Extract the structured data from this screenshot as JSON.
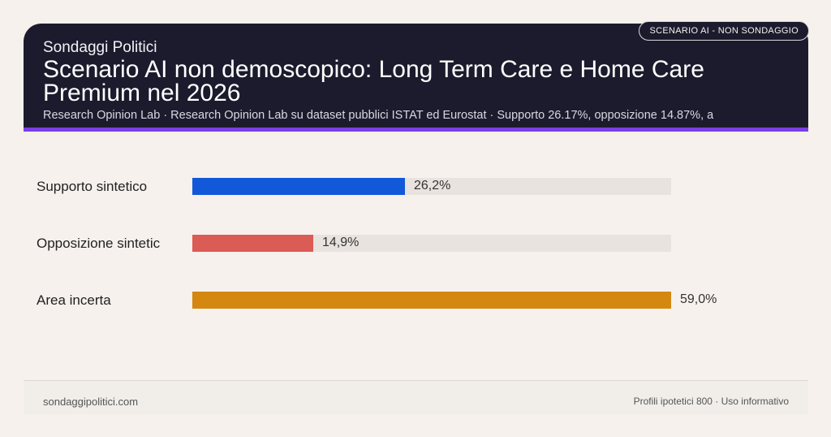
{
  "header": {
    "kicker": "Sondaggi Politici",
    "title": "Scenario AI non demoscopico: Long Term Care e Home Care Premium nel 2026",
    "subtitle": "Research Opinion Lab · Research Opinion Lab su dataset pubblici ISTAT ed Eurostat · Supporto 26.17%, opposizione 14.87%, a",
    "badge": "SCENARIO AI - NON SONDAGGIO"
  },
  "chart_data": {
    "type": "bar",
    "orientation": "horizontal",
    "categories": [
      "Supporto sintetico",
      "Opposizione sintetic",
      "Area incerta"
    ],
    "values": [
      26.2,
      14.9,
      59.0
    ],
    "value_labels": [
      "26,2%",
      "14,9%",
      "59,0%"
    ],
    "colors": [
      "#1259d9",
      "#db5b55",
      "#d4880f"
    ],
    "xlim": [
      0,
      59.0
    ],
    "track_color": "#e8e3de"
  },
  "footer": {
    "left": "sondaggipolitici.com",
    "right": "Profili ipotetici 800 · Uso informativo"
  }
}
